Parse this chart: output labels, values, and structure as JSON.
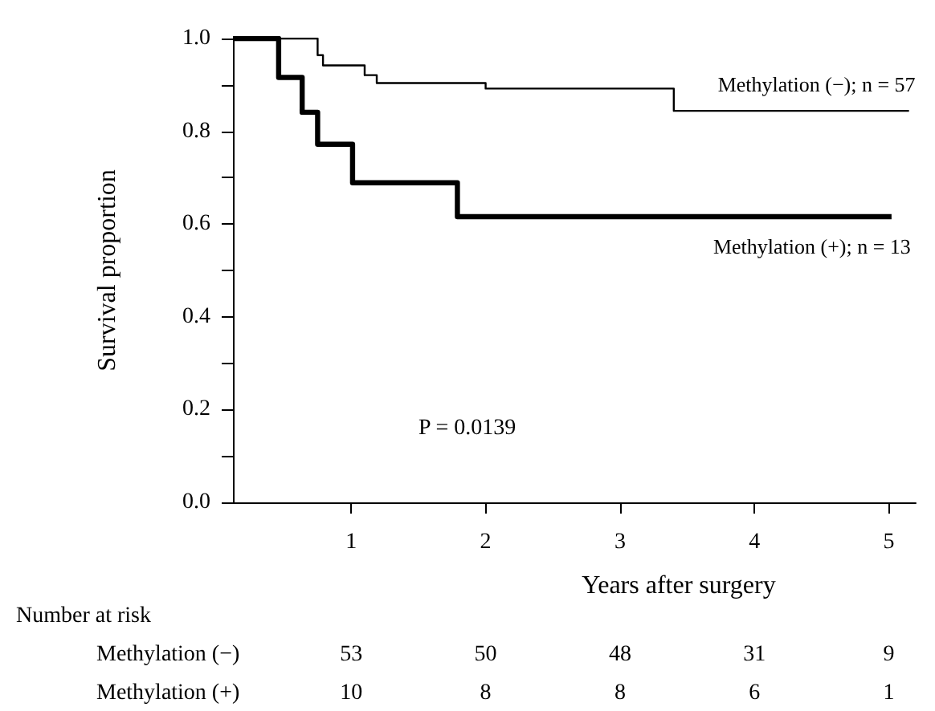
{
  "chart_data": {
    "type": "step",
    "xlabel": "Years after surgery",
    "ylabel": "Survival proportion",
    "series": [
      {
        "name": "Methylation (−); n = 57",
        "color": "#000000",
        "x": [
          0.12,
          0.75,
          0.79,
          1.1,
          1.19,
          2.0,
          3.4,
          5.15
        ],
        "values": [
          1.0,
          0.964,
          0.942,
          0.921,
          0.904,
          0.892,
          0.844,
          0.844
        ]
      },
      {
        "name": "Methylation (+); n = 13",
        "color": "#000000",
        "x": [
          0.12,
          0.46,
          0.635,
          0.75,
          1.01,
          1.79,
          5.02
        ],
        "values": [
          1.0,
          0.916,
          0.841,
          0.772,
          0.689,
          0.616,
          0.616
        ]
      }
    ],
    "xlim": [
      0.12,
      5.2
    ],
    "xticks": [
      1,
      2,
      3,
      4,
      5
    ],
    "ylim": [
      0,
      1
    ],
    "yticks": [
      {
        "value": 0,
        "label": "0.0"
      },
      {
        "value": 0.1,
        "label": null
      },
      {
        "value": 0.2,
        "label": "0.2"
      },
      {
        "value": 0.3,
        "label": null
      },
      {
        "value": 0.4,
        "label": "0.4"
      },
      {
        "value": 0.5,
        "label": null
      },
      {
        "value": 0.6,
        "label": "0.6"
      },
      {
        "value": 0.7,
        "label": null
      },
      {
        "value": 0.8,
        "label": "0.8"
      },
      {
        "value": 0.9,
        "label": null
      },
      {
        "value": 1,
        "label": "1.0"
      }
    ],
    "grid": false,
    "legend": false,
    "marker": "none",
    "line_style": "solid",
    "annotations": [
      "P = 0.0139",
      "Number at risk",
      "Methylation (−)",
      "53",
      "50",
      "48",
      "31",
      "9",
      "Methylation (+)",
      "10",
      "8",
      "8",
      "6",
      "1"
    ]
  }
}
